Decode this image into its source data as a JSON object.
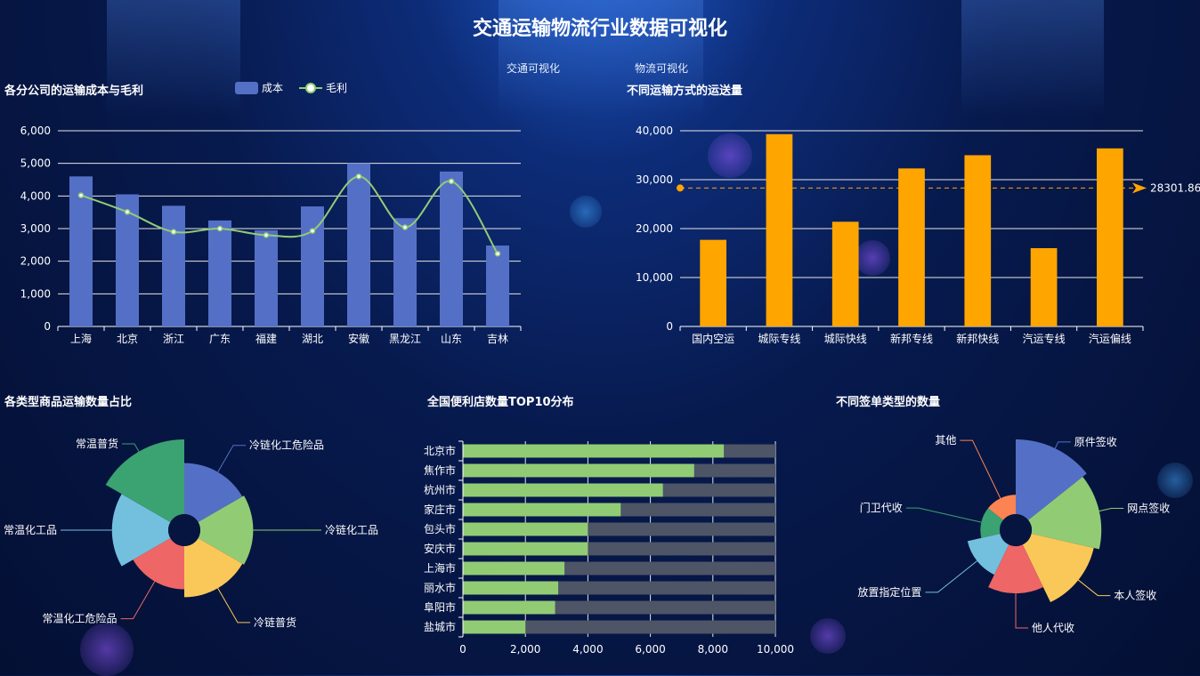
{
  "header": {
    "title": "交通运输物流行业数据可视化",
    "nav": [
      {
        "label": "交通可视化"
      },
      {
        "label": "物流可视化"
      }
    ]
  },
  "colors": {
    "cost": "#5470c6",
    "profit": "#91cc75",
    "orange": "#ffa500",
    "bar_bg": "#4d5566",
    "pie": [
      "#5470c6",
      "#91cc75",
      "#fac858",
      "#ee6666",
      "#73c0de",
      "#3ba272",
      "#fc8452"
    ]
  },
  "chart_data": [
    {
      "id": "cost_profit",
      "type": "bar",
      "title": "各分公司的运输成本与毛利",
      "categories": [
        "上海",
        "北京",
        "浙江",
        "广东",
        "福建",
        "湖北",
        "安徽",
        "黑龙江",
        "山东",
        "吉林"
      ],
      "series": [
        {
          "name": "成本",
          "type": "bar",
          "values": [
            4600,
            4050,
            3700,
            3250,
            2950,
            3680,
            5000,
            3320,
            4750,
            2480
          ]
        },
        {
          "name": "毛利",
          "type": "line",
          "smooth": true,
          "values": [
            4020,
            3510,
            2900,
            3000,
            2800,
            2930,
            4600,
            3040,
            4450,
            2230
          ]
        }
      ],
      "yticks": [
        "0",
        "1,000",
        "2,000",
        "3,000",
        "4,000",
        "5,000",
        "6,000"
      ],
      "ylim": [
        0,
        6000
      ],
      "grid": true,
      "legend": "top"
    },
    {
      "id": "transport_volume",
      "type": "bar",
      "title": "不同运输方式的运送量",
      "categories": [
        "国内空运",
        "城际专线",
        "城际快线",
        "新邦专线",
        "新邦快线",
        "汽运专线",
        "汽运偏线"
      ],
      "values": [
        17700,
        39300,
        21400,
        32300,
        35000,
        16000,
        36400
      ],
      "yticks": [
        "0",
        "10,000",
        "20,000",
        "30,000",
        "40,000"
      ],
      "ylim": [
        0,
        40000
      ],
      "markline": {
        "value": 28301.86,
        "label": "28301.86"
      },
      "grid": true
    },
    {
      "id": "goods_share",
      "type": "pie",
      "rose": true,
      "title": "各类型商品运输数量占比",
      "slices": [
        {
          "label": "冷链化工危险品",
          "value": 14
        },
        {
          "label": "冷链化工品",
          "value": 15
        },
        {
          "label": "冷链普货",
          "value": 14
        },
        {
          "label": "常温化工危险品",
          "value": 10
        },
        {
          "label": "常温化工品",
          "value": 17
        },
        {
          "label": "常温普货",
          "value": 30
        }
      ]
    },
    {
      "id": "store_top10",
      "type": "bar",
      "orientation": "horizontal",
      "title": "全国便利店数量TOP10分布",
      "categories": [
        "北京市",
        "焦作市",
        "杭州市",
        "家庄市",
        "包头市",
        "安庆市",
        "上海市",
        "丽水市",
        "阜阳市",
        "盐城市"
      ],
      "values": [
        8350,
        7400,
        6400,
        5050,
        4000,
        4000,
        3250,
        3050,
        2950,
        2000
      ],
      "background_max": 10000,
      "xticks": [
        "0",
        "2,000",
        "4,000",
        "6,000",
        "8,000",
        "10,000"
      ],
      "xlim": [
        0,
        10000
      ],
      "grid": true
    },
    {
      "id": "sign_types",
      "type": "pie",
      "rose": true,
      "title": "不同签单类型的数量",
      "slices": [
        {
          "label": "原件签收",
          "value": 30
        },
        {
          "label": "网点签收",
          "value": 26
        },
        {
          "label": "本人签收",
          "value": 22
        },
        {
          "label": "他人代收",
          "value": 12
        },
        {
          "label": "放置指定位置",
          "value": 6
        },
        {
          "label": "门卫代收",
          "value": 2
        },
        {
          "label": "其他",
          "value": 2
        }
      ]
    }
  ]
}
